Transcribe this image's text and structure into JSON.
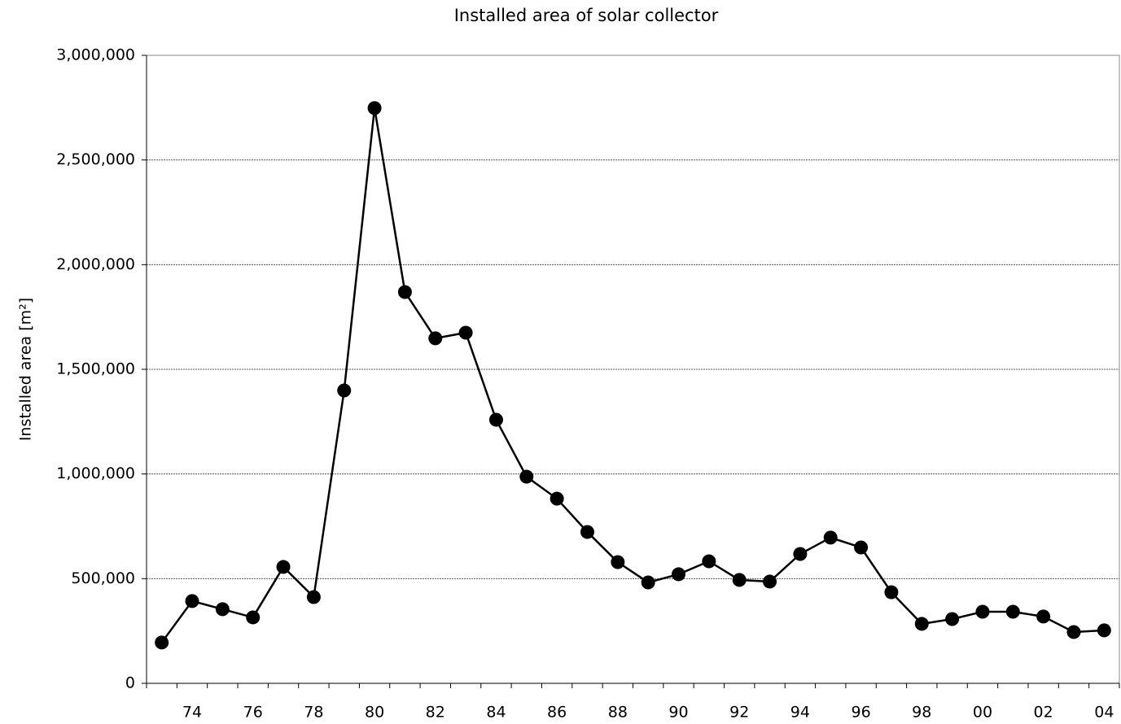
{
  "chart_data": {
    "type": "line",
    "title": "Installed area of solar collector",
    "y_label": "Installed area [m²]",
    "categories": [
      null,
      "74",
      null,
      "76",
      null,
      "78",
      null,
      "80",
      null,
      "82",
      null,
      "84",
      null,
      "86",
      null,
      "88",
      null,
      "90",
      null,
      "92",
      null,
      "94",
      null,
      "96",
      null,
      "98",
      null,
      "00",
      null,
      "02",
      null,
      "04"
    ],
    "series": [
      {
        "name": "Installed area",
        "color": "#000000",
        "values": [
          195000,
          393000,
          354000,
          315000,
          556000,
          412000,
          1399000,
          2748000,
          1869000,
          1648000,
          1675000,
          1259000,
          987000,
          882000,
          723000,
          579000,
          482000,
          521000,
          583000,
          494000,
          486000,
          618000,
          696000,
          649000,
          435000,
          284000,
          307000,
          342000,
          342000,
          319000,
          245000,
          253000
        ]
      }
    ],
    "ylim": [
      0,
      3000000
    ],
    "yticks": [
      0,
      {
        "value": 500000,
        "label": "500,000"
      },
      {
        "value": 1000000,
        "label": "1,000,000"
      },
      {
        "value": 1500000,
        "label": "1,500,000"
      },
      {
        "value": 2000000,
        "label": "2,000,000"
      },
      {
        "value": 2500000,
        "label": "2,500,000"
      },
      {
        "value": 3000000,
        "label": "3,000,000"
      }
    ],
    "grid": true
  }
}
